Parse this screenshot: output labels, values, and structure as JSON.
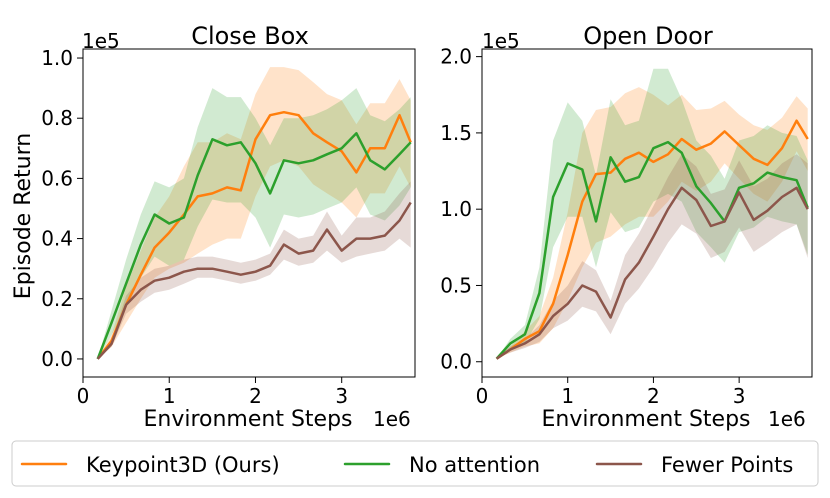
{
  "legend": {
    "placement": "bottom",
    "entries": [
      {
        "name": "Keypoint3D (Ours)",
        "color": "#ff7f0e"
      },
      {
        "name": "No attention",
        "color": "#2ca02c"
      },
      {
        "name": "Fewer Points",
        "color": "#8c564b"
      }
    ]
  },
  "chart_data": [
    {
      "type": "line",
      "title": "Close Box",
      "xlabel": "Environment Steps",
      "ylabel": "Episode Return",
      "x_multiplier": "1e6",
      "y_multiplier": "1e5",
      "xlim": [
        0,
        3.85
      ],
      "ylim": [
        -0.06,
        1.03
      ],
      "xticks": [
        0,
        1,
        2,
        3
      ],
      "yticks": [
        0.0,
        0.2,
        0.4,
        0.6,
        0.8,
        1.0
      ],
      "ytick_labels": [
        "0.0",
        "0.2",
        "0.4",
        "0.6",
        "0.8",
        "1.0"
      ],
      "x": [
        0.17,
        0.33,
        0.5,
        0.67,
        0.83,
        1.0,
        1.17,
        1.33,
        1.5,
        1.67,
        1.83,
        2.0,
        2.17,
        2.33,
        2.5,
        2.67,
        2.83,
        3.0,
        3.17,
        3.33,
        3.5,
        3.67,
        3.8
      ],
      "series": [
        {
          "name": "Keypoint3D (Ours)",
          "color": "#ff7f0e",
          "values": [
            0.0,
            0.06,
            0.18,
            0.28,
            0.37,
            0.42,
            0.48,
            0.54,
            0.55,
            0.57,
            0.56,
            0.73,
            0.81,
            0.82,
            0.81,
            0.75,
            0.72,
            0.69,
            0.62,
            0.7,
            0.7,
            0.81,
            0.72
          ],
          "lower": [
            0.0,
            0.04,
            0.12,
            0.2,
            0.27,
            0.3,
            0.32,
            0.35,
            0.38,
            0.4,
            0.4,
            0.54,
            0.64,
            0.66,
            0.64,
            0.58,
            0.55,
            0.52,
            0.47,
            0.55,
            0.55,
            0.64,
            0.57
          ],
          "upper": [
            0.0,
            0.08,
            0.24,
            0.36,
            0.47,
            0.54,
            0.64,
            0.72,
            0.72,
            0.75,
            0.73,
            0.88,
            0.97,
            0.97,
            0.96,
            0.92,
            0.88,
            0.86,
            0.78,
            0.85,
            0.85,
            0.93,
            0.86
          ]
        },
        {
          "name": "No attention",
          "color": "#2ca02c",
          "values": [
            0.0,
            0.12,
            0.25,
            0.38,
            0.48,
            0.45,
            0.47,
            0.61,
            0.73,
            0.71,
            0.72,
            0.65,
            0.55,
            0.66,
            0.65,
            0.66,
            0.68,
            0.7,
            0.75,
            0.66,
            0.63,
            0.68,
            0.72
          ],
          "lower": [
            0.0,
            0.08,
            0.17,
            0.27,
            0.34,
            0.31,
            0.33,
            0.44,
            0.53,
            0.52,
            0.52,
            0.47,
            0.37,
            0.48,
            0.47,
            0.48,
            0.5,
            0.52,
            0.57,
            0.48,
            0.46,
            0.51,
            0.57
          ],
          "upper": [
            0.0,
            0.16,
            0.33,
            0.48,
            0.59,
            0.57,
            0.6,
            0.77,
            0.9,
            0.87,
            0.87,
            0.8,
            0.71,
            0.8,
            0.8,
            0.81,
            0.83,
            0.86,
            0.9,
            0.81,
            0.79,
            0.83,
            0.87
          ]
        },
        {
          "name": "Fewer Points",
          "color": "#8c564b",
          "values": [
            0.0,
            0.05,
            0.18,
            0.23,
            0.26,
            0.27,
            0.29,
            0.3,
            0.3,
            0.29,
            0.28,
            0.29,
            0.31,
            0.38,
            0.35,
            0.36,
            0.43,
            0.36,
            0.4,
            0.4,
            0.41,
            0.46,
            0.52
          ],
          "lower": [
            0.0,
            0.04,
            0.15,
            0.19,
            0.22,
            0.23,
            0.25,
            0.27,
            0.27,
            0.26,
            0.25,
            0.26,
            0.28,
            0.33,
            0.31,
            0.32,
            0.36,
            0.32,
            0.34,
            0.35,
            0.36,
            0.4,
            0.37
          ],
          "upper": [
            0.0,
            0.06,
            0.21,
            0.27,
            0.3,
            0.31,
            0.33,
            0.34,
            0.34,
            0.33,
            0.32,
            0.33,
            0.35,
            0.43,
            0.4,
            0.41,
            0.49,
            0.41,
            0.47,
            0.47,
            0.49,
            0.55,
            0.59
          ]
        }
      ]
    },
    {
      "type": "line",
      "title": "Open Door",
      "xlabel": "Environment Steps",
      "ylabel": "",
      "x_multiplier": "1e6",
      "y_multiplier": "1e5",
      "xlim": [
        0,
        3.85
      ],
      "ylim": [
        -0.1,
        2.05
      ],
      "xticks": [
        0,
        1,
        2,
        3
      ],
      "yticks": [
        0.0,
        0.5,
        1.0,
        1.5,
        2.0
      ],
      "ytick_labels": [
        "0.0",
        "0.5",
        "1.0",
        "1.5",
        "2.0"
      ],
      "x": [
        0.17,
        0.33,
        0.5,
        0.67,
        0.83,
        1.0,
        1.17,
        1.33,
        1.5,
        1.67,
        1.83,
        2.0,
        2.17,
        2.33,
        2.5,
        2.67,
        2.83,
        3.0,
        3.17,
        3.33,
        3.5,
        3.67,
        3.8
      ],
      "series": [
        {
          "name": "Keypoint3D (Ours)",
          "color": "#ff7f0e",
          "values": [
            0.02,
            0.08,
            0.15,
            0.2,
            0.38,
            0.7,
            1.05,
            1.23,
            1.24,
            1.33,
            1.37,
            1.31,
            1.36,
            1.46,
            1.39,
            1.43,
            1.51,
            1.42,
            1.33,
            1.29,
            1.4,
            1.58,
            1.46
          ],
          "lower": [
            0.02,
            0.06,
            0.1,
            0.12,
            0.22,
            0.4,
            0.62,
            0.78,
            0.82,
            0.9,
            0.95,
            0.95,
            1.05,
            1.18,
            1.12,
            1.18,
            1.3,
            1.2,
            1.1,
            1.05,
            1.18,
            1.38,
            1.25
          ],
          "upper": [
            0.02,
            0.1,
            0.2,
            0.3,
            0.55,
            0.98,
            1.5,
            1.65,
            1.67,
            1.76,
            1.8,
            1.75,
            1.68,
            1.75,
            1.65,
            1.66,
            1.71,
            1.62,
            1.55,
            1.52,
            1.6,
            1.74,
            1.66
          ]
        },
        {
          "name": "No attention",
          "color": "#2ca02c",
          "values": [
            0.02,
            0.12,
            0.18,
            0.45,
            1.08,
            1.3,
            1.26,
            0.92,
            1.34,
            1.18,
            1.21,
            1.4,
            1.44,
            1.37,
            1.15,
            1.04,
            0.92,
            1.14,
            1.17,
            1.24,
            1.21,
            1.19,
            1.01
          ],
          "lower": [
            0.02,
            0.09,
            0.12,
            0.28,
            0.75,
            0.95,
            0.95,
            0.62,
            0.98,
            0.85,
            0.88,
            1.05,
            1.1,
            1.05,
            0.85,
            0.75,
            0.65,
            0.85,
            0.88,
            0.95,
            0.92,
            0.9,
            0.7
          ],
          "upper": [
            0.02,
            0.15,
            0.24,
            0.62,
            1.45,
            1.7,
            1.58,
            1.22,
            1.72,
            1.55,
            1.58,
            1.92,
            1.92,
            1.72,
            1.45,
            1.35,
            1.2,
            1.45,
            1.48,
            1.55,
            1.5,
            1.48,
            1.32
          ]
        },
        {
          "name": "Fewer Points",
          "color": "#8c564b",
          "values": [
            0.02,
            0.08,
            0.12,
            0.18,
            0.3,
            0.38,
            0.5,
            0.46,
            0.29,
            0.54,
            0.65,
            0.82,
            1.0,
            1.14,
            1.06,
            0.89,
            0.92,
            1.11,
            0.93,
            0.99,
            1.08,
            1.14,
            1.0
          ],
          "lower": [
            0.02,
            0.06,
            0.09,
            0.13,
            0.22,
            0.27,
            0.36,
            0.33,
            0.18,
            0.38,
            0.48,
            0.62,
            0.78,
            0.9,
            0.84,
            0.68,
            0.72,
            0.88,
            0.72,
            0.78,
            0.85,
            0.9,
            0.68
          ],
          "upper": [
            0.02,
            0.1,
            0.15,
            0.24,
            0.4,
            0.5,
            0.66,
            0.6,
            0.4,
            0.7,
            0.84,
            1.02,
            1.21,
            1.36,
            1.28,
            1.1,
            1.13,
            1.32,
            1.15,
            1.2,
            1.3,
            1.36,
            1.3
          ]
        }
      ]
    }
  ]
}
